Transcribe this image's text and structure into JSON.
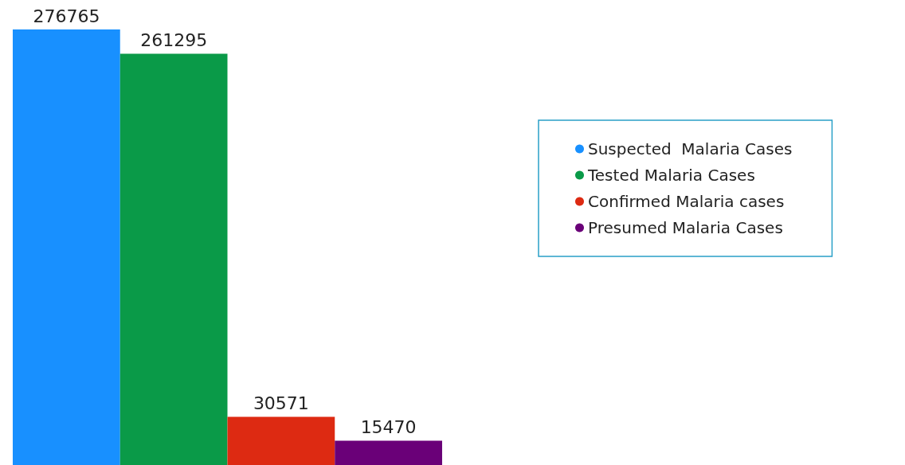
{
  "chart_data": {
    "type": "bar",
    "categories": [
      null
    ],
    "series": [
      {
        "name": "Suspected  Malaria Cases",
        "color": "#1890ff",
        "values": [
          276765
        ]
      },
      {
        "name": "Tested Malaria Cases",
        "color": "#0a9a48",
        "values": [
          261295
        ]
      },
      {
        "name": "Confirmed Malaria cases",
        "color": "#dd2a12",
        "values": [
          30571
        ]
      },
      {
        "name": "Presumed Malaria Cases",
        "color": "#6a0078",
        "values": [
          15470
        ]
      }
    ],
    "data_labels": true,
    "legend": "right"
  }
}
